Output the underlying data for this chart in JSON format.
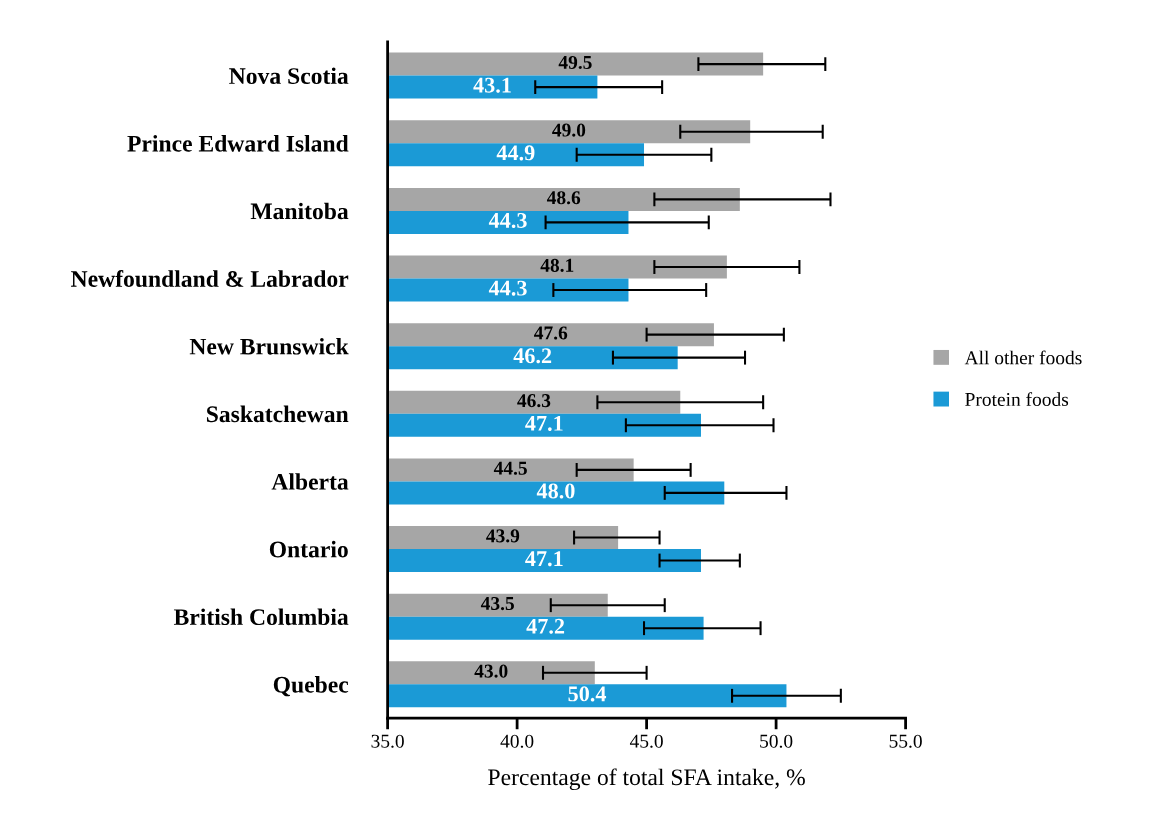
{
  "chart_data": {
    "type": "bar",
    "orientation": "horizontal",
    "xlabel": "Percentage of total SFA intake, %",
    "categories": [
      "Nova Scotia",
      "Prince Edward Island",
      "Manitoba",
      "Newfoundland & Labrador",
      "New Brunswick",
      "Saskatchewan",
      "Alberta",
      "Ontario",
      "British Columbia",
      "Quebec"
    ],
    "series": [
      {
        "name": "All other foods",
        "color": "#a6a6a6",
        "values": [
          49.5,
          49.0,
          48.6,
          48.1,
          47.6,
          46.3,
          44.5,
          43.9,
          43.5,
          43.0
        ],
        "value_labels": [
          "49.5",
          "49.0",
          "48.6",
          "48.1",
          "47.6",
          "46.3",
          "44.5",
          "43.9",
          "43.5",
          "43.0"
        ],
        "errors": [
          [
            47.0,
            51.9
          ],
          [
            46.3,
            51.8
          ],
          [
            45.3,
            52.1
          ],
          [
            45.3,
            50.9
          ],
          [
            45.0,
            50.3
          ],
          [
            43.1,
            49.5
          ],
          [
            42.3,
            46.7
          ],
          [
            42.2,
            45.5
          ],
          [
            41.3,
            45.7
          ],
          [
            41.0,
            45.0
          ]
        ]
      },
      {
        "name": "Protein foods",
        "color": "#1b9ad6",
        "values": [
          43.1,
          44.9,
          44.3,
          44.3,
          46.2,
          47.1,
          48.0,
          47.1,
          47.2,
          50.4
        ],
        "value_labels": [
          "43.1",
          "44.9",
          "44.3",
          "44.3",
          "46.2",
          "47.1",
          "48.0",
          "47.1",
          "47.2",
          "50.4"
        ],
        "errors": [
          [
            40.7,
            45.6
          ],
          [
            42.3,
            47.5
          ],
          [
            41.1,
            47.4
          ],
          [
            41.4,
            47.3
          ],
          [
            43.7,
            48.8
          ],
          [
            44.2,
            49.9
          ],
          [
            45.7,
            50.4
          ],
          [
            45.5,
            48.6
          ],
          [
            44.9,
            49.4
          ],
          [
            48.3,
            52.5
          ]
        ]
      }
    ],
    "xlim": [
      35,
      55
    ],
    "xticks": [
      {
        "value": 35,
        "label": "35.0"
      },
      {
        "value": 40,
        "label": "40.0"
      },
      {
        "value": 45,
        "label": "45.0"
      },
      {
        "value": 50,
        "label": "50.0"
      },
      {
        "value": 55,
        "label": "55.0"
      }
    ],
    "legend": "right",
    "grid": false
  }
}
